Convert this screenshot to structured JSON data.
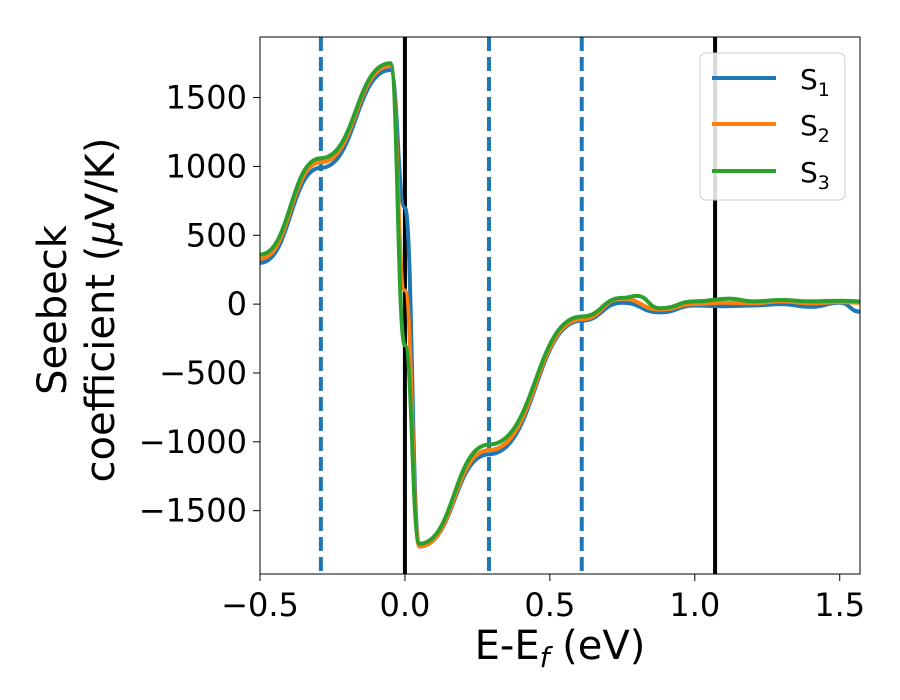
{
  "chart_data": {
    "type": "line",
    "xlabel": "E-E",
    "xlabel_sub": "f",
    "xlabel_unit": " (eV)",
    "ylabel_line1": "Seebeck",
    "ylabel_line2": "coefficient  (",
    "ylabel_mu": "μ",
    "ylabel_unit": "V/K)",
    "xlim": [
      -0.5,
      1.57
    ],
    "ylim": [
      -1960,
      1940
    ],
    "xticks": [
      -0.5,
      0.0,
      0.5,
      1.0,
      1.5
    ],
    "xtick_labels": [
      "−0.5",
      "0.0",
      "0.5",
      "1.0",
      "1.5"
    ],
    "yticks": [
      -1500,
      -1000,
      -500,
      0,
      500,
      1000,
      1500
    ],
    "ytick_labels": [
      "−1500",
      "−1000",
      "−500",
      "0",
      "500",
      "1000",
      "1500"
    ],
    "grid": false,
    "legend_position": "top-right",
    "vlines_solid": {
      "color": "#000000",
      "x": [
        0.0,
        1.07
      ]
    },
    "vlines_dashed": {
      "color": "#1f77b4",
      "x": [
        -0.29,
        0.29,
        0.61
      ]
    },
    "series": [
      {
        "name": "S",
        "sub": "1",
        "color": "#1f77b4",
        "x": [
          -0.5,
          -0.29,
          -0.05,
          0.0,
          0.05,
          0.29,
          0.61,
          0.75,
          0.88,
          1.0,
          1.1,
          1.2,
          1.3,
          1.4,
          1.5,
          1.57
        ],
        "y": [
          300,
          990,
          1700,
          700,
          -1760,
          -1090,
          -120,
          10,
          -60,
          -10,
          -15,
          -10,
          0,
          -20,
          10,
          -55
        ]
      },
      {
        "name": "S",
        "sub": "2",
        "color": "#ff7f0e",
        "x": [
          -0.5,
          -0.29,
          -0.05,
          0.0,
          0.05,
          0.29,
          0.61,
          0.75,
          0.88,
          1.0,
          1.1,
          1.2,
          1.3,
          1.4,
          1.5,
          1.57
        ],
        "y": [
          330,
          1030,
          1730,
          100,
          -1760,
          -1060,
          -110,
          40,
          -40,
          0,
          10,
          5,
          20,
          5,
          15,
          10
        ]
      },
      {
        "name": "S",
        "sub": "3",
        "color": "#2ca02c",
        "x": [
          -0.5,
          -0.29,
          -0.05,
          0.0,
          0.05,
          0.29,
          0.61,
          0.75,
          0.8,
          0.88,
          1.0,
          1.12,
          1.2,
          1.3,
          1.4,
          1.5,
          1.57
        ],
        "y": [
          360,
          1060,
          1750,
          -300,
          -1740,
          -1020,
          -90,
          45,
          60,
          -30,
          20,
          40,
          20,
          30,
          20,
          25,
          20
        ]
      }
    ]
  }
}
